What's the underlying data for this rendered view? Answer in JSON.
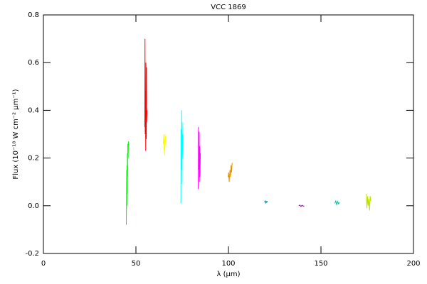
{
  "chart_data": {
    "type": "line",
    "title": "VCC 1869",
    "x_label": "λ (μm)",
    "y_label": "Flux (10⁻¹⁸ W cm⁻² μm⁻¹)",
    "xlim": [
      0,
      200
    ],
    "xticks": [
      0,
      50,
      100,
      150,
      200
    ],
    "ylim": [
      -0.2,
      0.8
    ],
    "yticks": [
      -0.2,
      {
        "value": 0,
        "label": "0.0"
      },
      0.2,
      0.4,
      0.6,
      0.8
    ],
    "series": [
      {
        "color": "#00ff00",
        "x": [
          44.8,
          45.0,
          45.1,
          45.2,
          45.3,
          45.4,
          45.5,
          45.6,
          45.8,
          46.0
        ],
        "values": [
          -0.08,
          0.15,
          0.0,
          0.17,
          0.05,
          0.22,
          0.12,
          0.26,
          0.2,
          0.27
        ]
      },
      {
        "color": "#ff0000",
        "x": [
          54.8,
          54.9,
          55.0,
          55.1,
          55.3,
          55.4,
          55.6,
          55.7,
          55.8,
          56.0
        ],
        "values": [
          0.33,
          0.7,
          0.3,
          0.48,
          0.23,
          0.6,
          0.28,
          0.58,
          0.35,
          0.4
        ]
      },
      {
        "color": "#ffff00",
        "x": [
          64.8,
          65.0,
          65.2,
          65.4,
          65.5,
          65.7,
          65.8,
          66.0
        ],
        "values": [
          0.26,
          0.3,
          0.23,
          0.28,
          0.21,
          0.3,
          0.25,
          0.29
        ]
      },
      {
        "color": "#00ffff",
        "x": [
          74.3,
          74.4,
          74.6,
          74.7,
          74.9,
          75.0,
          75.1,
          75.3
        ],
        "values": [
          0.01,
          0.32,
          0.15,
          0.4,
          0.09,
          0.35,
          0.2,
          0.3
        ]
      },
      {
        "color": "#ff00ff",
        "x": [
          83.7,
          83.8,
          84.0,
          84.2,
          84.3,
          84.5,
          84.6,
          84.8
        ],
        "values": [
          0.07,
          0.33,
          0.15,
          0.31,
          0.1,
          0.25,
          0.12,
          0.22
        ]
      },
      {
        "color": "#e69500",
        "x": [
          99.8,
          100.1,
          100.4,
          100.8,
          101.1,
          101.4,
          101.7,
          102.0
        ],
        "values": [
          0.12,
          0.14,
          0.1,
          0.15,
          0.12,
          0.17,
          0.14,
          0.18
        ]
      },
      {
        "color": "#0090c0",
        "x": [
          119.5,
          119.8,
          120.1,
          120.4,
          120.7,
          121.0
        ],
        "values": [
          0.015,
          0.02,
          0.012,
          0.018,
          0.014,
          0.02
        ]
      },
      {
        "color": "#a000c0",
        "x": [
          138.0,
          138.6,
          139.2,
          139.8,
          140.4,
          141.0
        ],
        "values": [
          0.0,
          0.003,
          -0.003,
          0.002,
          -0.002,
          0.0
        ]
      },
      {
        "color": "#00c0a0",
        "x": [
          157.5,
          158.0,
          158.5,
          159.0,
          159.5,
          160.0
        ],
        "values": [
          0.01,
          0.02,
          0.005,
          0.018,
          0.008,
          0.015
        ]
      },
      {
        "color": "#c0e000",
        "x": [
          174.5,
          174.8,
          175.2,
          175.5,
          175.9,
          176.3,
          176.6,
          177.0
        ],
        "values": [
          0.05,
          -0.01,
          0.04,
          0.0,
          0.03,
          -0.02,
          0.04,
          0.02
        ]
      }
    ]
  }
}
